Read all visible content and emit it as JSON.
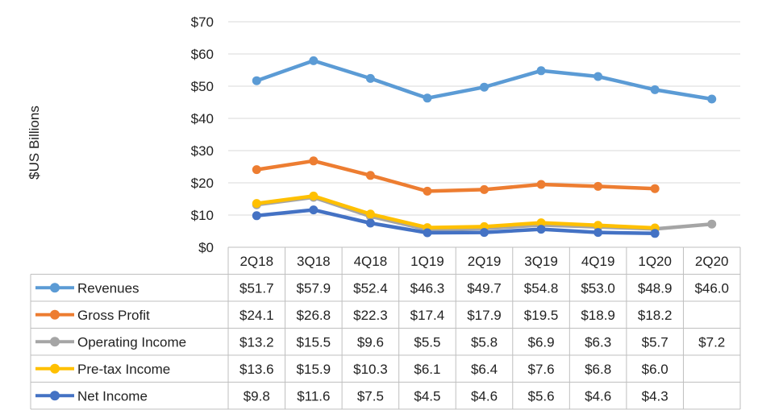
{
  "chart_data": {
    "type": "line",
    "ylabel": "$US Billions",
    "ylim": [
      0,
      70
    ],
    "y_ticks": [
      0,
      10,
      20,
      30,
      40,
      50,
      60,
      70
    ],
    "y_tick_labels": [
      "$0",
      "$10",
      "$20",
      "$30",
      "$40",
      "$50",
      "$60",
      "$70"
    ],
    "grid": true,
    "legend": "data-table-below",
    "categories": [
      "2Q18",
      "3Q18",
      "4Q18",
      "1Q19",
      "2Q19",
      "3Q19",
      "4Q19",
      "1Q20",
      "2Q20"
    ],
    "series": [
      {
        "name": "Revenues",
        "color": "#5b9bd5",
        "values": [
          51.7,
          57.9,
          52.4,
          46.3,
          49.7,
          54.8,
          53.0,
          48.9,
          46.0
        ],
        "labels": [
          "$51.7",
          "$57.9",
          "$52.4",
          "$46.3",
          "$49.7",
          "$54.8",
          "$53.0",
          "$48.9",
          "$46.0"
        ]
      },
      {
        "name": "Gross Profit",
        "color": "#ed7d31",
        "values": [
          24.1,
          26.8,
          22.3,
          17.4,
          17.9,
          19.5,
          18.9,
          18.2,
          null
        ],
        "labels": [
          "$24.1",
          "$26.8",
          "$22.3",
          "$17.4",
          "$17.9",
          "$19.5",
          "$18.9",
          "$18.2",
          ""
        ]
      },
      {
        "name": "Operating Income",
        "color": "#a5a5a5",
        "values": [
          13.2,
          15.5,
          9.6,
          5.5,
          5.8,
          6.9,
          6.3,
          5.7,
          7.2
        ],
        "labels": [
          "$13.2",
          "$15.5",
          "$9.6",
          "$5.5",
          "$5.8",
          "$6.9",
          "$6.3",
          "$5.7",
          "$7.2"
        ]
      },
      {
        "name": "Pre-tax Income",
        "color": "#ffc000",
        "values": [
          13.6,
          15.9,
          10.3,
          6.1,
          6.4,
          7.6,
          6.8,
          6.0,
          null
        ],
        "labels": [
          "$13.6",
          "$15.9",
          "$10.3",
          "$6.1",
          "$6.4",
          "$7.6",
          "$6.8",
          "$6.0",
          ""
        ]
      },
      {
        "name": "Net Income",
        "color": "#4472c4",
        "values": [
          9.8,
          11.6,
          7.5,
          4.5,
          4.6,
          5.6,
          4.6,
          4.3,
          null
        ],
        "labels": [
          "$9.8",
          "$11.6",
          "$7.5",
          "$4.5",
          "$4.6",
          "$5.6",
          "$4.6",
          "$4.3",
          ""
        ]
      }
    ]
  }
}
